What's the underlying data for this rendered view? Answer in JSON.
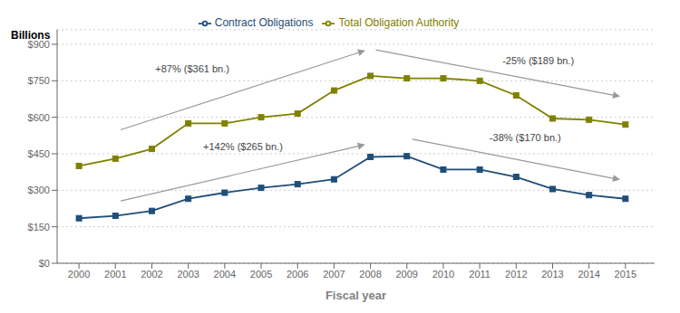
{
  "chart_data": {
    "type": "line",
    "xlabel": "Fiscal year",
    "ylabel": "Billions",
    "x": [
      2000,
      2001,
      2002,
      2003,
      2004,
      2005,
      2006,
      2007,
      2008,
      2009,
      2010,
      2011,
      2012,
      2013,
      2014,
      2015
    ],
    "series": [
      {
        "name": "Contract Obligations",
        "color": "#1F4E79",
        "marker": "square",
        "values": [
          185,
          195,
          215,
          265,
          290,
          310,
          325,
          345,
          437,
          440,
          385,
          385,
          355,
          305,
          280,
          265
        ]
      },
      {
        "name": "Total Obligation Authority",
        "color": "#808000",
        "marker": "square",
        "values": [
          400,
          430,
          470,
          575,
          575,
          600,
          615,
          710,
          770,
          760,
          760,
          750,
          690,
          595,
          590,
          570
        ]
      }
    ],
    "xlim": [
      1999.4,
      2015.8
    ],
    "xticks": [
      2000,
      2001,
      2002,
      2003,
      2004,
      2005,
      2006,
      2007,
      2008,
      2009,
      2010,
      2011,
      2012,
      2013,
      2014,
      2015
    ],
    "ylim": [
      0,
      960
    ],
    "yticks": [
      {
        "value": 0,
        "label": "$0"
      },
      {
        "value": 150,
        "label": "$150"
      },
      {
        "value": 300,
        "label": "$300"
      },
      {
        "value": 450,
        "label": "$450"
      },
      {
        "value": 600,
        "label": "$600"
      },
      {
        "value": 750,
        "label": "$750"
      },
      {
        "value": 900,
        "label": "$900"
      }
    ],
    "grid": true,
    "legend": "top",
    "annotations": [
      "+87% ($361 bn.)",
      "-25% ($189 bn.)",
      "+142% ($265 bn.)",
      "-38% ($170 bn.)"
    ]
  }
}
